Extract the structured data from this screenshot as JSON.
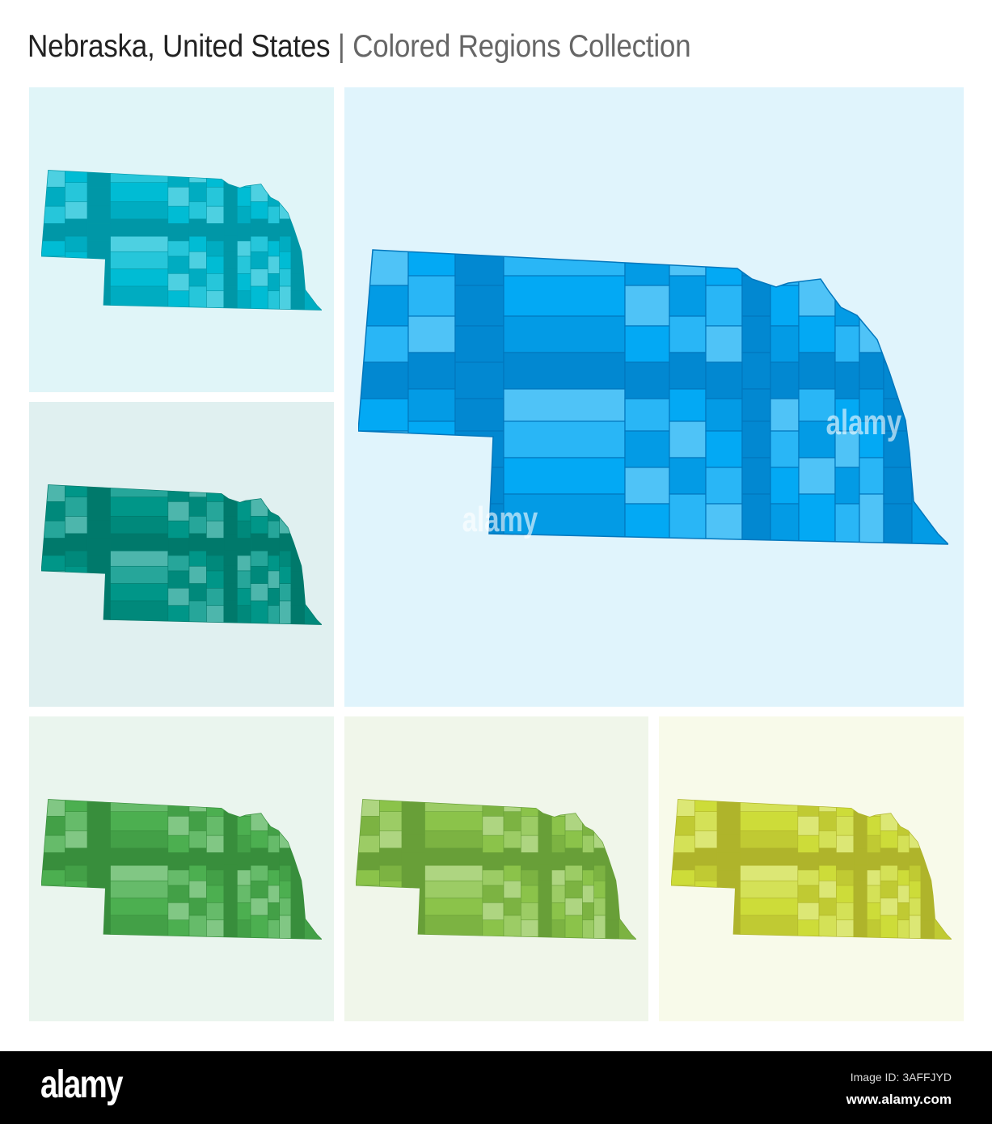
{
  "header": {
    "title": "Nebraska, United States",
    "subtitle": "| Colored Regions Collection"
  },
  "maps": [
    {
      "id": "cyan",
      "background": "#e0f5f8",
      "stroke": "#0097a7",
      "palette": [
        "#4dd0e1",
        "#26c6da",
        "#00bcd4",
        "#00acc1",
        "#0097a7"
      ]
    },
    {
      "id": "teal",
      "background": "#e0f0f0",
      "stroke": "#00796b",
      "palette": [
        "#4db6ac",
        "#26a69a",
        "#009688",
        "#00897b",
        "#00796b"
      ]
    },
    {
      "id": "blue",
      "background": "#e0f4fc",
      "stroke": "#0277bd",
      "palette": [
        "#4fc3f7",
        "#29b6f6",
        "#03a9f4",
        "#039be5",
        "#0288d1"
      ]
    },
    {
      "id": "green",
      "background": "#eaf5ee",
      "stroke": "#388e3c",
      "palette": [
        "#81c784",
        "#66bb6a",
        "#4caf50",
        "#43a047",
        "#388e3c"
      ]
    },
    {
      "id": "light-green",
      "background": "#f0f6ea",
      "stroke": "#689f38",
      "palette": [
        "#aed581",
        "#9ccc65",
        "#8bc34a",
        "#7cb342",
        "#689f38"
      ]
    },
    {
      "id": "lime",
      "background": "#f8faea",
      "stroke": "#afb42b",
      "palette": [
        "#dce775",
        "#d4e157",
        "#cddc39",
        "#c0ca33",
        "#afb42b"
      ]
    }
  ],
  "watermark": "alamy",
  "footer": {
    "logo": "alamy",
    "image_id": "Image ID: 3AFFJYD",
    "website": "www.alamy.com"
  }
}
